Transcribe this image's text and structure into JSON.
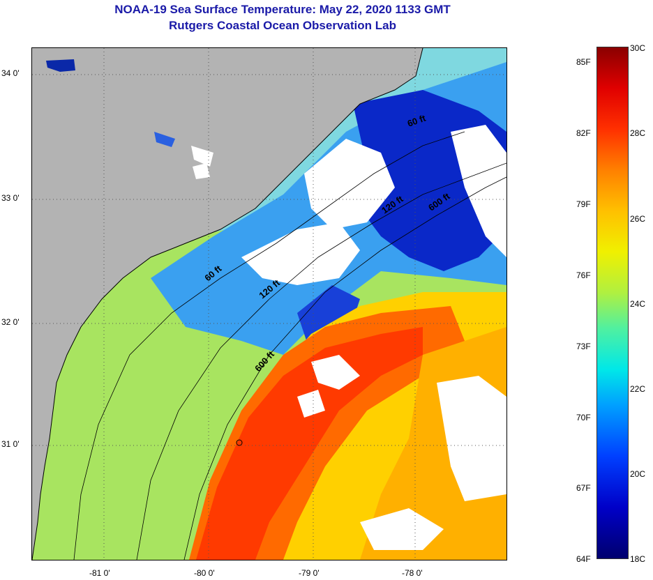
{
  "title": {
    "line1": "NOAA-19 Sea Surface Temperature:  May 22, 2020 1133 GMT",
    "line2": "Rutgers Coastal Ocean Observation Lab"
  },
  "map": {
    "lat_labels": [
      "34 0'",
      "33 0'",
      "32 0'",
      "31 0'"
    ],
    "lon_labels": [
      "-81 0'",
      "-80 0'",
      "-79 0'",
      "-78 0'"
    ],
    "contour_labels": [
      "60 ft",
      "120 ft",
      "600 ft",
      "60 ft",
      "120 ft",
      "600 ft"
    ],
    "colors": {
      "land": "#b3b3b3",
      "cloud": "#ffffff",
      "warm_core": "#ff3000",
      "warm_band": "#ffc000",
      "shelf": "#b8e84a",
      "cool": "#40d0f0",
      "cold": "#0020c0"
    }
  },
  "colorbar": {
    "fahrenheit_labels": [
      "85F",
      "82F",
      "79F",
      "76F",
      "73F",
      "70F",
      "67F",
      "64F"
    ],
    "celsius_labels": [
      "30C",
      "28C",
      "26C",
      "24C",
      "22C",
      "20C",
      "18C"
    ]
  }
}
